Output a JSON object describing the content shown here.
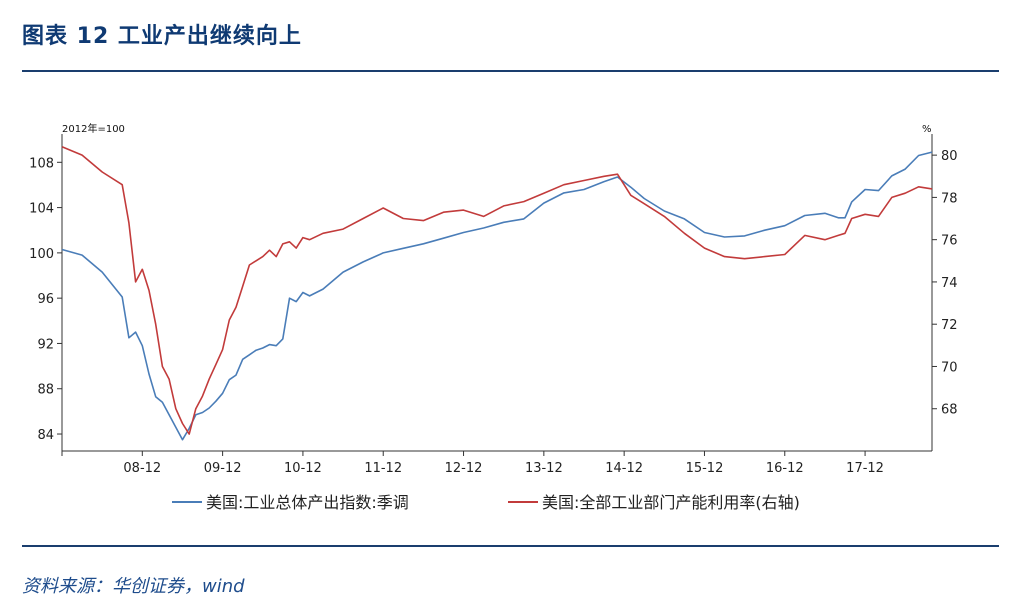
{
  "header": {
    "title": "图表 12  工业产出继续向上"
  },
  "footer": {
    "source": "资料来源：华创证券，wind"
  },
  "chart_data": {
    "type": "line",
    "left_axis_label": "2012年=100",
    "right_axis_label": "%",
    "left_ylim": [
      82.5,
      110.5
    ],
    "right_ylim": [
      66.0,
      81.0
    ],
    "left_ticks": [
      84,
      88,
      92,
      96,
      100,
      104,
      108
    ],
    "right_ticks": [
      68,
      70,
      72,
      74,
      76,
      78,
      80
    ],
    "x_tick_labels": [
      "08-12",
      "09-12",
      "10-12",
      "11-12",
      "12-12",
      "13-12",
      "14-12",
      "15-12",
      "16-12",
      "17-12"
    ],
    "x_range": [
      "2007-12",
      "2018-10"
    ],
    "legend_position": "bottom",
    "series": [
      {
        "name": "美国:工业总体产出指数:季调",
        "axis": "left",
        "color": "#4a7db8",
        "x": [
          "2007-12",
          "2008-03",
          "2008-06",
          "2008-09",
          "2008-10",
          "2008-11",
          "2008-12",
          "2009-01",
          "2009-02",
          "2009-03",
          "2009-04",
          "2009-05",
          "2009-06",
          "2009-07",
          "2009-08",
          "2009-09",
          "2009-10",
          "2009-11",
          "2009-12",
          "2010-01",
          "2010-02",
          "2010-03",
          "2010-04",
          "2010-05",
          "2010-06",
          "2010-07",
          "2010-08",
          "2010-09",
          "2010-10",
          "2010-11",
          "2010-12",
          "2011-01",
          "2011-03",
          "2011-06",
          "2011-09",
          "2011-12",
          "2012-03",
          "2012-06",
          "2012-09",
          "2012-12",
          "2013-03",
          "2013-06",
          "2013-09",
          "2013-12",
          "2014-03",
          "2014-06",
          "2014-09",
          "2014-11",
          "2015-01",
          "2015-03",
          "2015-06",
          "2015-09",
          "2015-12",
          "2016-03",
          "2016-06",
          "2016-09",
          "2016-12",
          "2017-03",
          "2017-06",
          "2017-08",
          "2017-09",
          "2017-10",
          "2017-12",
          "2018-02",
          "2018-04",
          "2018-06",
          "2018-08",
          "2018-10"
        ],
        "values": [
          100.3,
          99.8,
          98.3,
          96.1,
          92.5,
          93.0,
          91.8,
          89.3,
          87.3,
          86.8,
          85.7,
          84.6,
          83.5,
          84.5,
          85.7,
          85.9,
          86.3,
          86.9,
          87.6,
          88.8,
          89.2,
          90.6,
          91.0,
          91.4,
          91.6,
          91.9,
          91.8,
          92.4,
          96.0,
          95.7,
          96.5,
          96.2,
          96.8,
          98.3,
          99.2,
          100.0,
          100.4,
          100.8,
          101.3,
          101.8,
          102.2,
          102.7,
          103.0,
          104.4,
          105.3,
          105.6,
          106.3,
          106.7,
          105.8,
          104.8,
          103.7,
          103.0,
          101.8,
          101.4,
          101.5,
          102.0,
          102.4,
          103.3,
          103.5,
          103.1,
          103.1,
          104.5,
          105.6,
          105.5,
          106.8,
          107.4,
          108.6,
          108.9
        ]
      },
      {
        "name": "美国:全部工业部门产能利用率(右轴)",
        "axis": "right",
        "color": "#c23b3b",
        "x": [
          "2007-12",
          "2008-03",
          "2008-06",
          "2008-09",
          "2008-10",
          "2008-11",
          "2008-12",
          "2009-01",
          "2009-02",
          "2009-03",
          "2009-04",
          "2009-05",
          "2009-06",
          "2009-07",
          "2009-08",
          "2009-09",
          "2009-10",
          "2009-11",
          "2009-12",
          "2010-01",
          "2010-02",
          "2010-03",
          "2010-04",
          "2010-05",
          "2010-06",
          "2010-07",
          "2010-08",
          "2010-09",
          "2010-10",
          "2010-11",
          "2010-12",
          "2011-01",
          "2011-03",
          "2011-06",
          "2011-09",
          "2011-12",
          "2012-03",
          "2012-06",
          "2012-09",
          "2012-12",
          "2013-03",
          "2013-06",
          "2013-09",
          "2013-12",
          "2014-03",
          "2014-06",
          "2014-09",
          "2014-11",
          "2015-01",
          "2015-03",
          "2015-06",
          "2015-09",
          "2015-12",
          "2016-03",
          "2016-06",
          "2016-09",
          "2016-12",
          "2017-03",
          "2017-06",
          "2017-08",
          "2017-09",
          "2017-10",
          "2017-12",
          "2018-02",
          "2018-04",
          "2018-06",
          "2018-08",
          "2018-10"
        ],
        "values": [
          80.4,
          80.0,
          79.2,
          78.6,
          76.8,
          74.0,
          74.6,
          73.6,
          72.0,
          70.0,
          69.4,
          68.0,
          67.3,
          66.8,
          68.0,
          68.6,
          69.4,
          70.1,
          70.8,
          72.2,
          72.8,
          73.8,
          74.8,
          75.0,
          75.2,
          75.5,
          75.2,
          75.8,
          75.9,
          75.6,
          76.1,
          76.0,
          76.3,
          76.5,
          77.0,
          77.5,
          77.0,
          76.9,
          77.3,
          77.4,
          77.1,
          77.6,
          77.8,
          78.2,
          78.6,
          78.8,
          79.0,
          79.1,
          78.1,
          77.7,
          77.1,
          76.3,
          75.6,
          75.2,
          75.1,
          75.2,
          75.3,
          76.2,
          76.0,
          76.2,
          76.3,
          77.0,
          77.2,
          77.1,
          78.0,
          78.2,
          78.5,
          78.4
        ]
      }
    ]
  }
}
